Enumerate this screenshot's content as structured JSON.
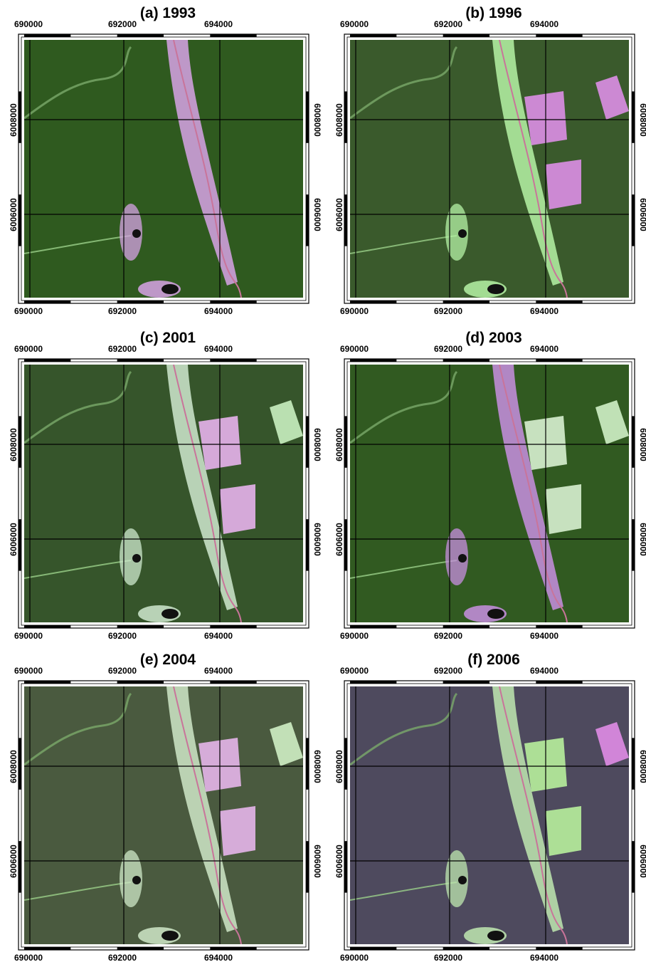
{
  "panels": [
    {
      "title": "(a) 1993",
      "style": "a"
    },
    {
      "title": "(b) 1996",
      "style": "b"
    },
    {
      "title": "(c) 2001",
      "style": "c"
    },
    {
      "title": "(d) 2003",
      "style": "d"
    },
    {
      "title": "(e) 2004",
      "style": "e"
    },
    {
      "title": "(f) 2006",
      "style": "f"
    }
  ],
  "axes": {
    "x_ticks": [
      "690000",
      "692000",
      "694000"
    ],
    "y_ticks": [
      "6008000",
      "6006000"
    ]
  },
  "colors": {
    "forest": "#2f5a1f",
    "forest_dark": "#213f17",
    "clearcut_pink": "#d9a0e0",
    "clearcut_green": "#b9f0a6",
    "road": "#c9749a",
    "grid": "#000000",
    "frame": "#000000"
  }
}
